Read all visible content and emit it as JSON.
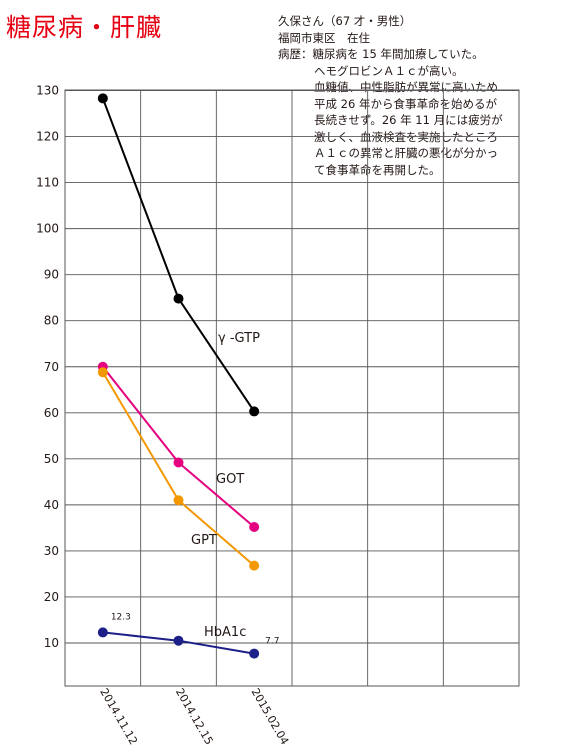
{
  "header": {
    "title": "糖尿病・肝臓",
    "patient_name": "久保さん（67 才・男性）",
    "address": "福岡市東区　在住",
    "history_lines": [
      "病歴：糖尿病を 15 年間加療していた。",
      "ヘモグロビンＡ１ｃが高い。",
      "血糖値、中性脂肪が異常に高いため",
      "平成 26 年から食事革命を始めるが",
      "長続きせず。26 年 11 月には疲労が",
      "激しく、血液検査を実施したところ",
      "Ａ１ｃの異常と肝臓の悪化が分かっ",
      "て食事革命を再開した。"
    ]
  },
  "chart_data": {
    "type": "line",
    "title": "",
    "xlabel": "",
    "ylabel": "",
    "x": [
      "2014.11.12",
      "2014.12.15",
      "2015.02.04"
    ],
    "ylim": [
      0,
      130
    ],
    "yticks": [
      10,
      20,
      30,
      40,
      50,
      60,
      70,
      80,
      90,
      100,
      110,
      120,
      130
    ],
    "grid": true,
    "series": [
      {
        "name": "γ -GTP",
        "values": [
          128.3,
          84.8,
          60.3
        ],
        "color": "#000000"
      },
      {
        "name": "GOT",
        "values": [
          70.0,
          49.2,
          35.2
        ],
        "color": "#e4007f"
      },
      {
        "name": "GPT",
        "values": [
          68.8,
          41.0,
          26.8
        ],
        "color": "#f39800"
      },
      {
        "name": "HbA1c",
        "values": [
          12.3,
          10.5,
          7.7
        ],
        "color": "#1d2088",
        "point_labels": [
          "12.3",
          "",
          "7.7"
        ]
      }
    ]
  }
}
